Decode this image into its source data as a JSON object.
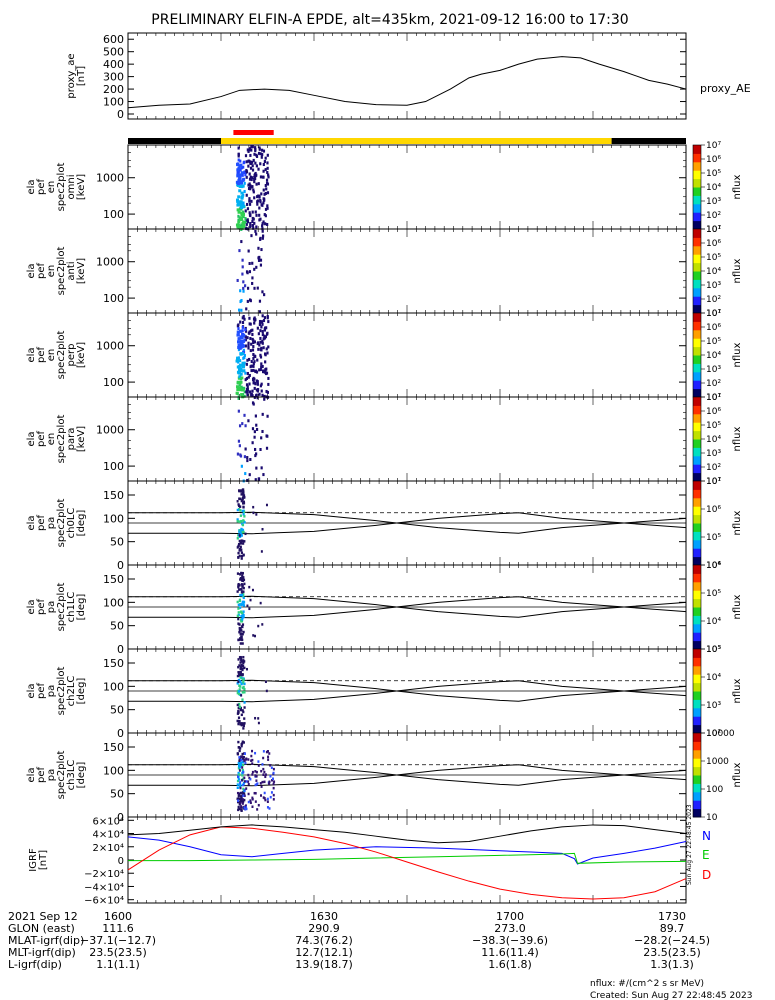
{
  "chart_data": {
    "type": "line",
    "title": "PRELIMINARY ELFIN-A EPDE, alt=435km, 2021-09-12 16:00 to 17:30",
    "x_unit": "UT time",
    "xlim": [
      "16:00",
      "17:30"
    ],
    "time_ticks": [
      "1600",
      "1630",
      "1700",
      "1730"
    ],
    "proxy_ae": {
      "ylabel": [
        "proxy_ae",
        "[nT]"
      ],
      "ylim": [
        0,
        650
      ],
      "yticks": [
        "0",
        "100",
        "200",
        "300",
        "400",
        "500",
        "600"
      ],
      "series_name": "proxy_AE",
      "x_min": [
        0,
        5,
        10,
        15,
        18,
        22,
        26,
        30,
        35,
        40,
        45,
        48,
        52,
        55,
        57,
        60,
        63,
        66,
        70,
        73,
        76,
        80,
        84,
        87,
        90
      ],
      "values": [
        50,
        70,
        80,
        140,
        190,
        200,
        190,
        150,
        100,
        75,
        70,
        100,
        200,
        290,
        320,
        350,
        400,
        440,
        460,
        450,
        400,
        340,
        270,
        240,
        200
      ]
    },
    "spectra_panels": [
      {
        "ylabel": [
          "ela",
          "pef",
          "en",
          "spec2plot",
          "omni",
          "[keV]"
        ],
        "yticks": [
          "100",
          "1000"
        ],
        "zticks": [
          "10¹",
          "10²",
          "10³",
          "10⁴",
          "10⁵",
          "10⁶",
          "10⁷"
        ],
        "zlabel": "nflux"
      },
      {
        "ylabel": [
          "ela",
          "pef",
          "en",
          "spec2plot",
          "anti",
          "[keV]"
        ],
        "yticks": [
          "100",
          "1000"
        ],
        "zticks": [
          "10¹",
          "10²",
          "10³",
          "10⁴",
          "10⁵",
          "10⁶",
          "10⁷"
        ],
        "zlabel": "nflux"
      },
      {
        "ylabel": [
          "ela",
          "pef",
          "en",
          "spec2plot",
          "perp",
          "[keV]"
        ],
        "yticks": [
          "100",
          "1000"
        ],
        "zticks": [
          "10¹",
          "10²",
          "10³",
          "10⁴",
          "10⁵",
          "10⁶",
          "10⁷"
        ],
        "zlabel": "nflux"
      },
      {
        "ylabel": [
          "ela",
          "pef",
          "en",
          "spec2plot",
          "para",
          "[keV]"
        ],
        "yticks": [
          "100",
          "1000"
        ],
        "zticks": [
          "10¹",
          "10²",
          "10³",
          "10⁴",
          "10⁵",
          "10⁶",
          "10⁷"
        ],
        "zlabel": "nflux"
      }
    ],
    "pa_panels": [
      {
        "ylabel": [
          "ela",
          "pef",
          "pa",
          "spec2plot",
          "ch0LC",
          "[deg]"
        ],
        "yticks": [
          "0",
          "50",
          "100",
          "150"
        ],
        "zticks": [
          "10⁴",
          "10⁵",
          "10⁶",
          "10⁷"
        ],
        "zlabel": "nflux"
      },
      {
        "ylabel": [
          "ela",
          "pef",
          "pa",
          "spec2plot",
          "ch1LC",
          "[deg]"
        ],
        "yticks": [
          "0",
          "50",
          "100",
          "150"
        ],
        "zticks": [
          "10³",
          "10⁴",
          "10⁵",
          "10⁶"
        ],
        "zlabel": "nflux"
      },
      {
        "ylabel": [
          "ela",
          "pef",
          "pa",
          "spec2plot",
          "ch2LC",
          "[deg]"
        ],
        "yticks": [
          "0",
          "50",
          "100",
          "150"
        ],
        "zticks": [
          "10²",
          "10³",
          "10⁴",
          "10⁵"
        ],
        "zlabel": "nflux"
      },
      {
        "ylabel": [
          "ela",
          "pef",
          "pa",
          "spec2plot",
          "ch3LC",
          "[deg]"
        ],
        "yticks": [
          "0",
          "50",
          "100",
          "150"
        ],
        "zticks": [
          "10",
          "100",
          "1000",
          "10000"
        ],
        "zlabel": "nflux"
      }
    ],
    "loss_cone_deg": {
      "x_min": [
        0,
        5,
        10,
        15,
        20,
        30,
        40,
        50,
        60,
        63,
        70,
        80,
        90
      ],
      "lc": [
        68,
        68,
        68,
        68,
        67,
        72,
        85,
        100,
        110,
        112,
        100,
        90,
        80
      ],
      "alc": [
        112,
        112,
        112,
        112,
        113,
        108,
        95,
        80,
        70,
        68,
        80,
        90,
        100
      ]
    },
    "igrf": {
      "ylabel": [
        "IGRF",
        "[nT]"
      ],
      "ylim": [
        -65000,
        65000
      ],
      "yticks": [
        "6×10⁴",
        "4×10⁴",
        "2×10⁴",
        "0",
        "−2×10⁴",
        "−4×10⁴",
        "−6×10⁴"
      ],
      "series": [
        {
          "name": "N",
          "color": "#0000ff",
          "x_min": [
            0,
            5,
            10,
            15,
            20,
            25,
            30,
            40,
            50,
            60,
            65,
            70,
            72,
            72.5,
            75,
            80,
            85,
            90
          ],
          "values": [
            35000,
            30000,
            20000,
            8000,
            5000,
            10000,
            15000,
            20000,
            18000,
            14000,
            12000,
            10000,
            2000,
            -6000,
            3000,
            10000,
            18000,
            28000
          ]
        },
        {
          "name": "E",
          "color": "#00cc00",
          "x_min": [
            0,
            10,
            20,
            30,
            40,
            50,
            60,
            70,
            72,
            72.5,
            80,
            90
          ],
          "values": [
            -1000,
            -1000,
            0,
            1000,
            3000,
            5000,
            7000,
            9000,
            10000,
            -5000,
            -3000,
            -2000
          ]
        },
        {
          "name": "D",
          "color": "#ff0000",
          "x_min": [
            0,
            5,
            10,
            15,
            20,
            25,
            30,
            35,
            40,
            45,
            50,
            55,
            60,
            65,
            70,
            75,
            80,
            85,
            90
          ],
          "values": [
            -15000,
            15000,
            38000,
            50000,
            48000,
            42000,
            35000,
            25000,
            12000,
            -3000,
            -18000,
            -32000,
            -44000,
            -52000,
            -57000,
            -59000,
            -57000,
            -48000,
            -28000
          ]
        },
        {
          "name": "",
          "color": "#000000",
          "x_min": [
            0,
            5,
            10,
            15,
            20,
            25,
            30,
            35,
            40,
            45,
            50,
            55,
            60,
            65,
            70,
            75,
            80,
            85,
            90
          ],
          "values": [
            38000,
            40000,
            45000,
            50000,
            53000,
            50000,
            46000,
            42000,
            36000,
            30000,
            26000,
            28000,
            36000,
            44000,
            50000,
            53000,
            52000,
            46000,
            40000
          ]
        }
      ]
    },
    "orbit_bar": {
      "segments": [
        {
          "x0_min": 0,
          "x1_min": 15,
          "color": "#000000"
        },
        {
          "x0_min": 15,
          "x1_min": 78,
          "color": "#ffd700"
        },
        {
          "x0_min": 78,
          "x1_min": 90,
          "color": "#000000"
        }
      ],
      "science_zone": {
        "x0_min": 17,
        "x1_min": 23.5,
        "color": "#ff0000"
      }
    },
    "spectrogram_burst": {
      "x0_min": 17.5,
      "x1_min": 22.5
    }
  },
  "ephemeris": {
    "rows": [
      {
        "label": "2021 Sep 12",
        "values": [
          "1600",
          "1630",
          "1700",
          "1730"
        ]
      },
      {
        "label": "GLON (east)",
        "values": [
          "111.6",
          "290.9",
          "273.0",
          "89.7"
        ]
      },
      {
        "label": "MLAT-igrf(dip)",
        "values": [
          "−37.1(−12.7)",
          "74.3(76.2)",
          "−38.3(−39.6)",
          "−28.2(−24.5)"
        ]
      },
      {
        "label": "MLT-igrf(dip)",
        "values": [
          "23.5(23.5)",
          "12.7(12.1)",
          "11.6(11.4)",
          "23.5(23.5)"
        ]
      },
      {
        "label": "L-igrf(dip)",
        "values": [
          "1.1(1.1)",
          "13.9(18.7)",
          "1.6(1.8)",
          "1.3(1.3)"
        ]
      }
    ]
  },
  "footer": {
    "units": "nflux: #/(cm^2 s sr MeV)",
    "created": "Created: Sun Aug 27 22:48:45 2023",
    "sidestamp": "Sun Aug 27 22:48:45 2023"
  }
}
